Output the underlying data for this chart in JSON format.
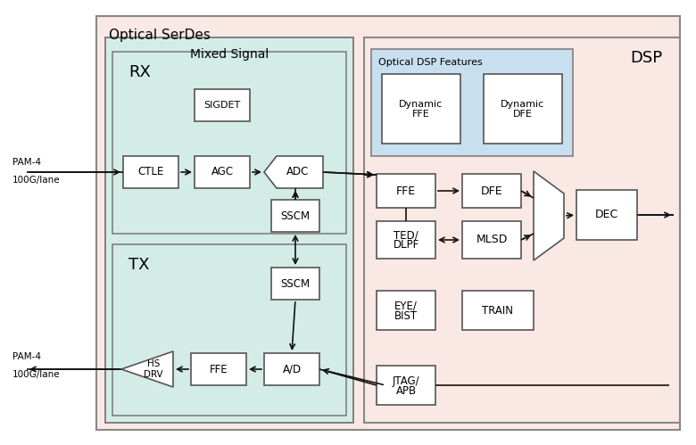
{
  "fig_width": 7.8,
  "fig_height": 4.99,
  "dpi": 100,
  "bg_outer": "#fae8e4",
  "bg_mixed": "#d4ece6",
  "bg_dsp": "#fae8e4",
  "bg_optical_dsp_features": "#c8dff0",
  "box_face": "#ffffff",
  "box_edge": "#555555",
  "line_color": "#111111",
  "outer_title": "Optical SerDes",
  "mixed_title": "Mixed Signal",
  "dsp_title": "DSP",
  "rx_label": "RX",
  "tx_label": "TX",
  "optical_dsp_title": "Optical DSP Features"
}
